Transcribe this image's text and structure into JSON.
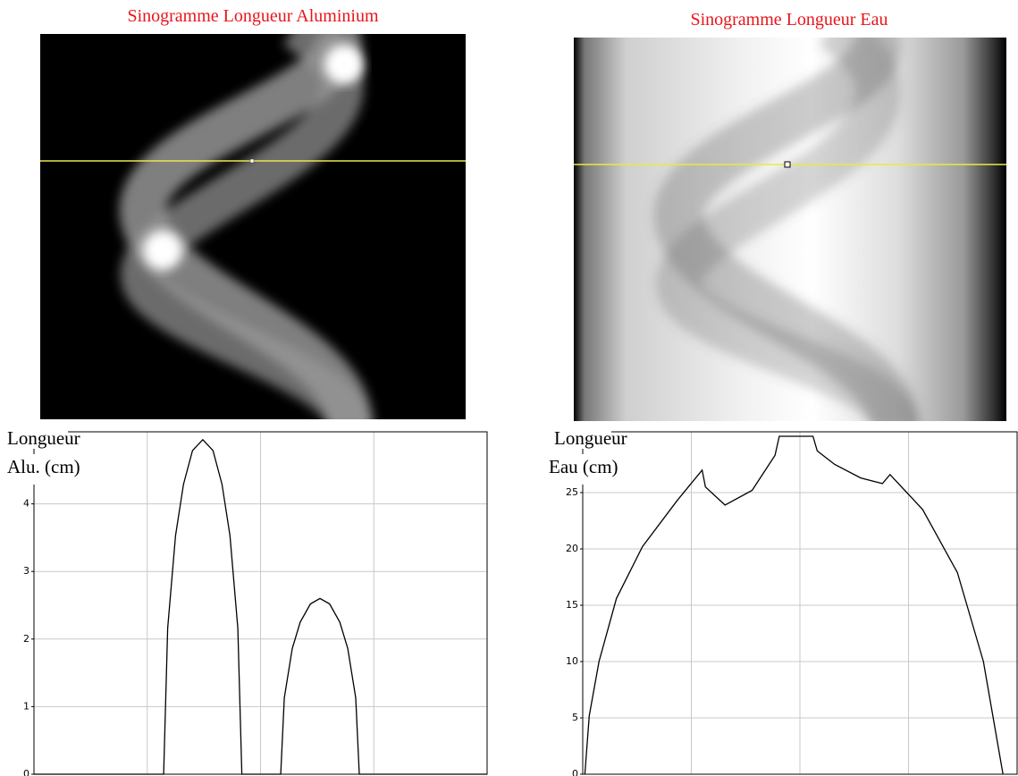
{
  "images": [
    {
      "title": "Sinogramme Longueur Aluminium"
    },
    {
      "title": "Sinogramme Longueur Eau"
    }
  ],
  "chart_data": [
    {
      "type": "line",
      "ylabel": [
        "Longueur",
        "Alu. (cm)"
      ],
      "xlim": [
        0,
        4
      ],
      "xticks": [
        1,
        2,
        3
      ],
      "ylim": [
        0,
        5
      ],
      "yticks": [
        0,
        1,
        2,
        3,
        4
      ],
      "grid": true,
      "color": "#000000",
      "x": [
        0,
        1.145,
        1.18,
        1.25,
        1.32,
        1.4,
        1.49,
        1.58,
        1.66,
        1.73,
        1.8,
        1.835,
        2.178,
        2.21,
        2.28,
        2.35,
        2.44,
        2.525,
        2.61,
        2.7,
        2.77,
        2.84,
        2.872,
        4
      ],
      "values": [
        0,
        0,
        2.16,
        3.53,
        4.29,
        4.79,
        4.95,
        4.79,
        4.29,
        3.53,
        2.16,
        0,
        0,
        1.13,
        1.86,
        2.25,
        2.52,
        2.6,
        2.52,
        2.25,
        1.86,
        1.13,
        0,
        0
      ]
    },
    {
      "type": "line",
      "ylabel": [
        "Longueur",
        "Eau (cm)"
      ],
      "xlim": [
        0,
        4
      ],
      "xticks": [
        1,
        2,
        3
      ],
      "ylim": [
        0,
        30
      ],
      "yticks": [
        0,
        5,
        10,
        15,
        20,
        25
      ],
      "grid": true,
      "color": "#000000",
      "x": [
        0.02,
        0.06,
        0.15,
        0.31,
        0.55,
        0.87,
        1.1,
        1.13,
        1.31,
        1.56,
        1.77,
        1.81,
        2.12,
        2.16,
        2.32,
        2.56,
        2.76,
        2.83,
        3.13,
        3.45,
        3.69,
        3.87
      ],
      "values": [
        0,
        5.2,
        10,
        15.6,
        20.2,
        24.3,
        27.0,
        25.5,
        23.9,
        25.2,
        28.3,
        30,
        30,
        28.7,
        27.5,
        26.3,
        25.8,
        26.6,
        23.5,
        17.9,
        10.0,
        0
      ]
    }
  ]
}
